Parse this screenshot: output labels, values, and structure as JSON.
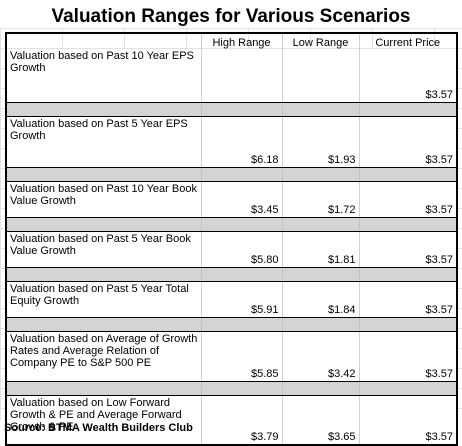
{
  "title": "Valuation Ranges for Various Scenarios",
  "columns": {
    "high": "High Range",
    "low": "Low Range",
    "current": "Current Price"
  },
  "rows": [
    {
      "label": "Valuation based on Past 10 Year EPS Growth",
      "high": "",
      "low": "",
      "current": "$3.57"
    },
    {
      "label": "Valuation based on Past 5 Year EPS Growth",
      "high": "$6.18",
      "low": "$1.93",
      "current": "$3.57"
    },
    {
      "label": "Valuation based on Past 10 Year Book Value Growth",
      "high": "$3.45",
      "low": "$1.72",
      "current": "$3.57"
    },
    {
      "label": "Valuation based on Past 5 Year Book Value Growth",
      "high": "$5.80",
      "low": "$1.81",
      "current": "$3.57"
    },
    {
      "label": "Valuation based on Past 5 Year Total Equity Growth",
      "high": "$5.91",
      "low": "$1.84",
      "current": "$3.57"
    },
    {
      "label": "Valuation based on Average of Growth Rates and Average Relation of Company PE to S&P 500 PE",
      "high": "$5.85",
      "low": "$3.42",
      "current": "$3.57"
    },
    {
      "label": "Valuation based on Low Forward Growth & PE and Average Forward Growth & PE",
      "high": "$3.79",
      "low": "$3.65",
      "current": "$3.57"
    }
  ],
  "source": "Source: BTMA Wealth Builders Club"
}
